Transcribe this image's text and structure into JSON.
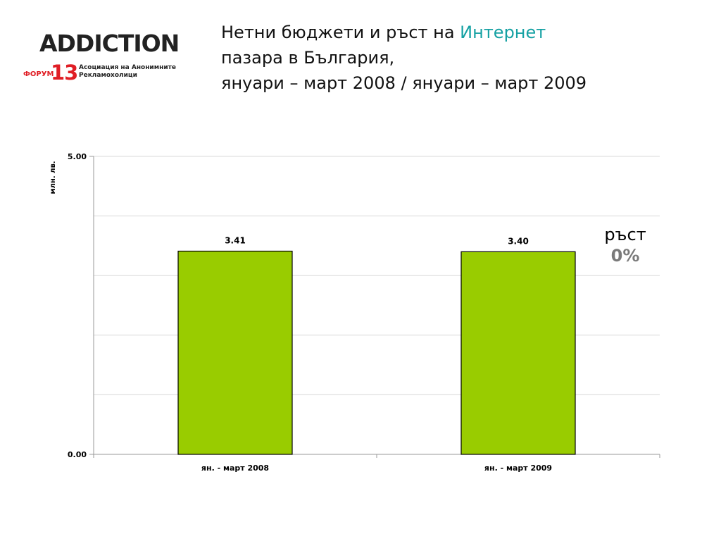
{
  "logo": {
    "brand_word": "ADDICTION",
    "forum_label": "ФОРУМ",
    "forum_number": "13",
    "tagline_line1": "Асоциация на Анонимните",
    "tagline_line2": "Рекламохолици"
  },
  "title": {
    "line1_part1": "Нетни бюджети и ръст на",
    "line1_highlight": "Интернет",
    "line2": "пазара в България,",
    "line3": "януари – март 2008 / януари – март 2009"
  },
  "growth": {
    "label": "ръст",
    "value": "0%"
  },
  "chart_data": {
    "type": "bar",
    "title": "",
    "xlabel": "",
    "ylabel": "млн. лв.",
    "ylim": [
      0,
      5
    ],
    "y_tick_labels": [
      "0.00",
      "5.00"
    ],
    "grid": true,
    "categories": [
      "ян. - март 2008",
      "ян. - март 2009"
    ],
    "values": [
      3.41,
      3.4
    ],
    "value_labels": [
      "3.41",
      "3.40"
    ],
    "bar_color": "#99cc00",
    "bar_border_color": "#000000"
  }
}
